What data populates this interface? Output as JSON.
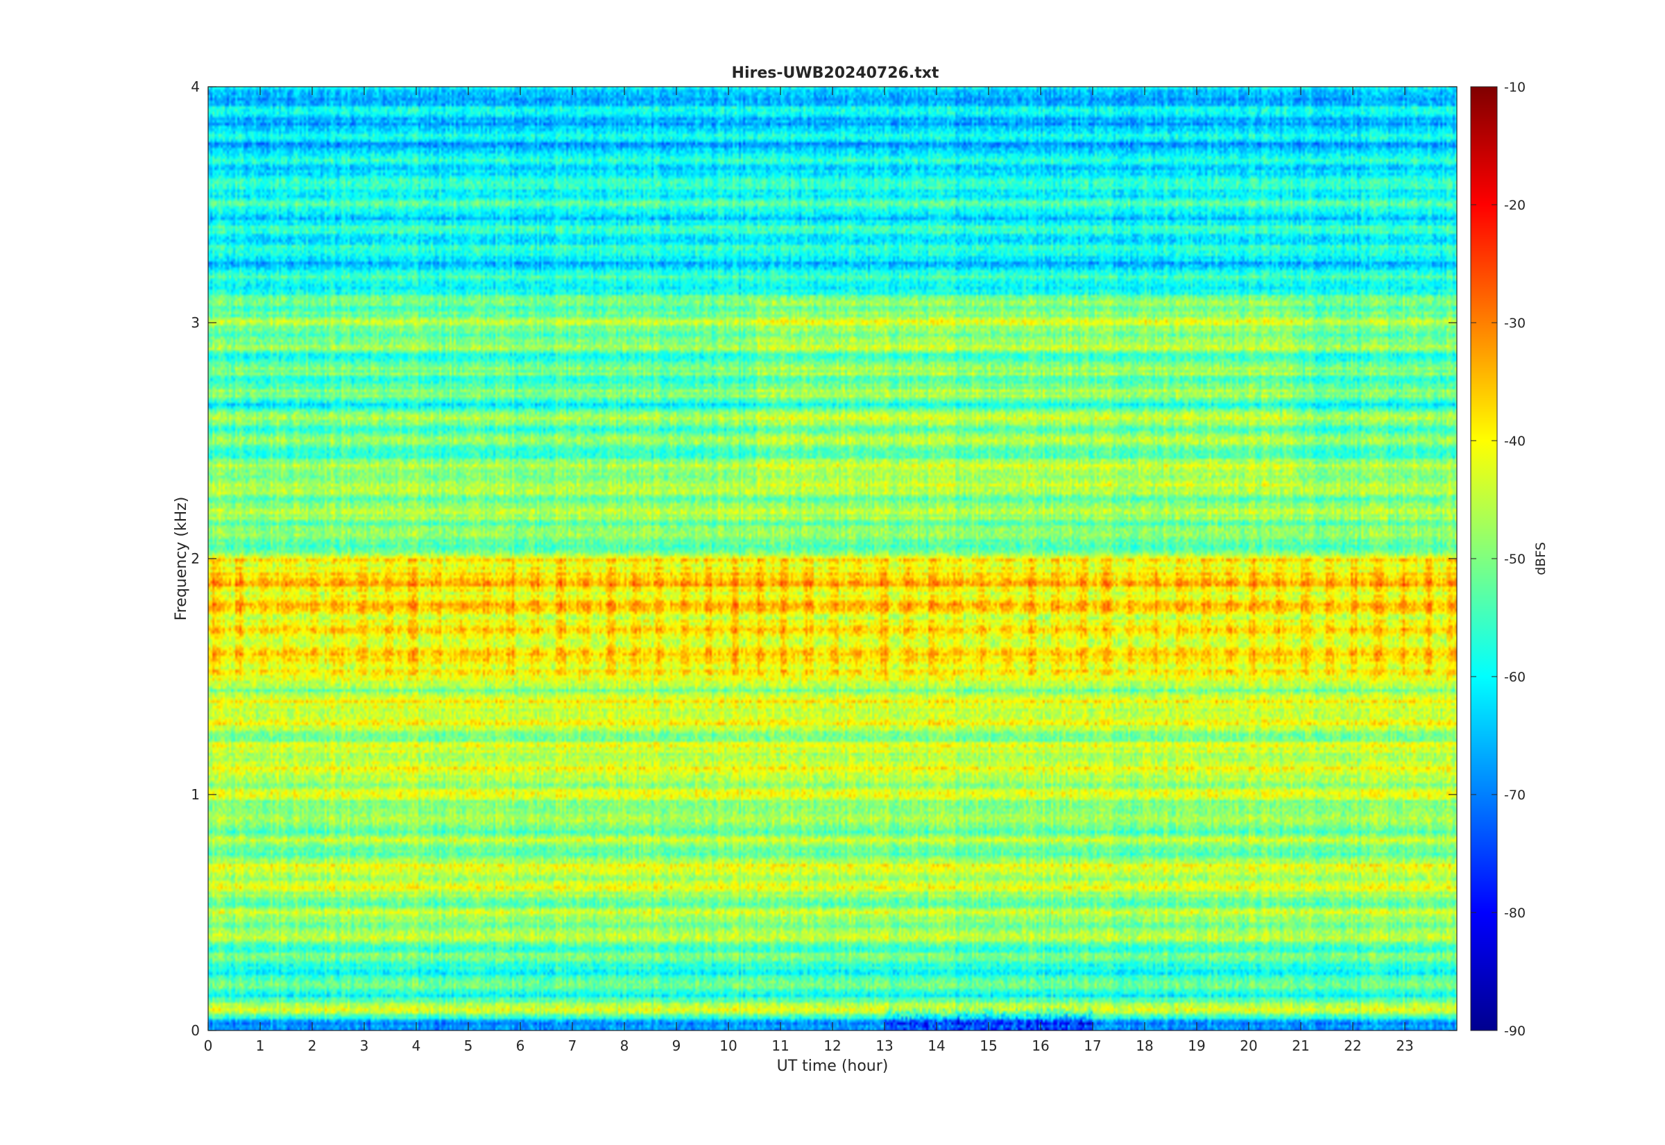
{
  "chart_data": {
    "type": "heatmap",
    "title": "Hires-UWB20240726.txt",
    "xlabel": "UT time (hour)",
    "ylabel": "Frequency (kHz)",
    "xlim": [
      0,
      24
    ],
    "ylim": [
      0,
      4
    ],
    "x_ticks": [
      "0",
      "1",
      "2",
      "3",
      "4",
      "5",
      "6",
      "7",
      "8",
      "9",
      "10",
      "11",
      "12",
      "13",
      "14",
      "15",
      "16",
      "17",
      "18",
      "19",
      "20",
      "21",
      "22",
      "23"
    ],
    "y_ticks": [
      "0",
      "1",
      "2",
      "3",
      "4"
    ],
    "colorbar": {
      "label": "dBFS",
      "range": [
        -90,
        -10
      ],
      "ticks": [
        "-10",
        "-20",
        "-30",
        "-40",
        "-50",
        "-60",
        "-70",
        "-80",
        "-90"
      ],
      "colormap": "jet"
    },
    "colormap_stops": [
      "#00008f",
      "#0000ff",
      "#00ffff",
      "#ffff00",
      "#ff0000",
      "#800000"
    ],
    "band_intensity_profile": {
      "frequency_khz": [
        0.02,
        0.07,
        0.15,
        0.25,
        0.35,
        0.45,
        0.55,
        0.65,
        0.75,
        0.85,
        0.95,
        1.05,
        1.15,
        1.25,
        1.35,
        1.45,
        1.55,
        1.65,
        1.75,
        1.85,
        1.95,
        2.05,
        2.15,
        2.25,
        2.35,
        2.45,
        2.55,
        2.65,
        2.75,
        2.85,
        2.95,
        3.05,
        3.15,
        3.25,
        3.35,
        3.45,
        3.55,
        3.65,
        3.75,
        3.85,
        3.95
      ],
      "level_dbfs": [
        -72,
        -45,
        -55,
        -58,
        -50,
        -48,
        -50,
        -42,
        -50,
        -48,
        -48,
        -45,
        -44,
        -48,
        -43,
        -46,
        -40,
        -42,
        -40,
        -40,
        -38,
        -52,
        -47,
        -50,
        -46,
        -55,
        -50,
        -55,
        -52,
        -55,
        -50,
        -50,
        -58,
        -60,
        -58,
        -60,
        -57,
        -60,
        -63,
        -63,
        -65
      ]
    }
  }
}
